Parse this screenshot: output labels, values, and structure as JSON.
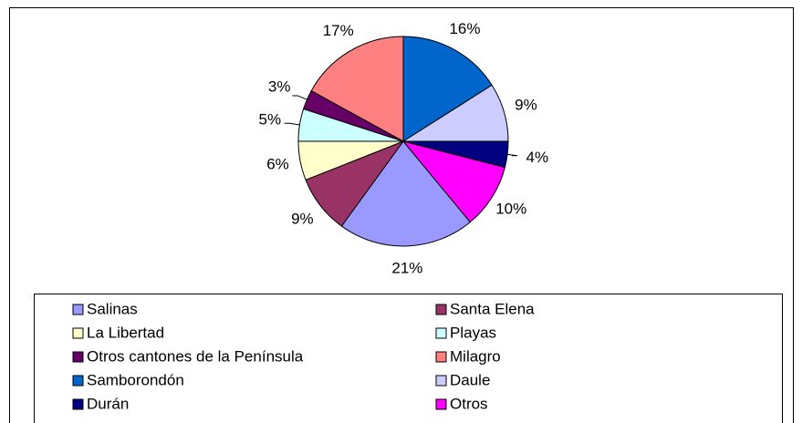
{
  "chart_data": {
    "type": "pie",
    "categories": [
      "Salinas",
      "Santa Elena",
      "La Libertad",
      "Playas",
      "Otros cantones de la Península",
      "Milagro",
      "Samborondón",
      "Daule",
      "Durán",
      "Otros"
    ],
    "values": [
      21,
      9,
      6,
      5,
      3,
      17,
      16,
      9,
      4,
      10
    ],
    "value_labels": [
      "21%",
      "9%",
      "6%",
      "5%",
      "3%",
      "17%",
      "16%",
      "9%",
      "4%",
      "10%"
    ],
    "colors": [
      "#9999ff",
      "#993366",
      "#ffffcc",
      "#ccffff",
      "#660066",
      "#ff8080",
      "#0066cc",
      "#ccccff",
      "#000080",
      "#ff00ff"
    ],
    "legend": "bottom"
  }
}
